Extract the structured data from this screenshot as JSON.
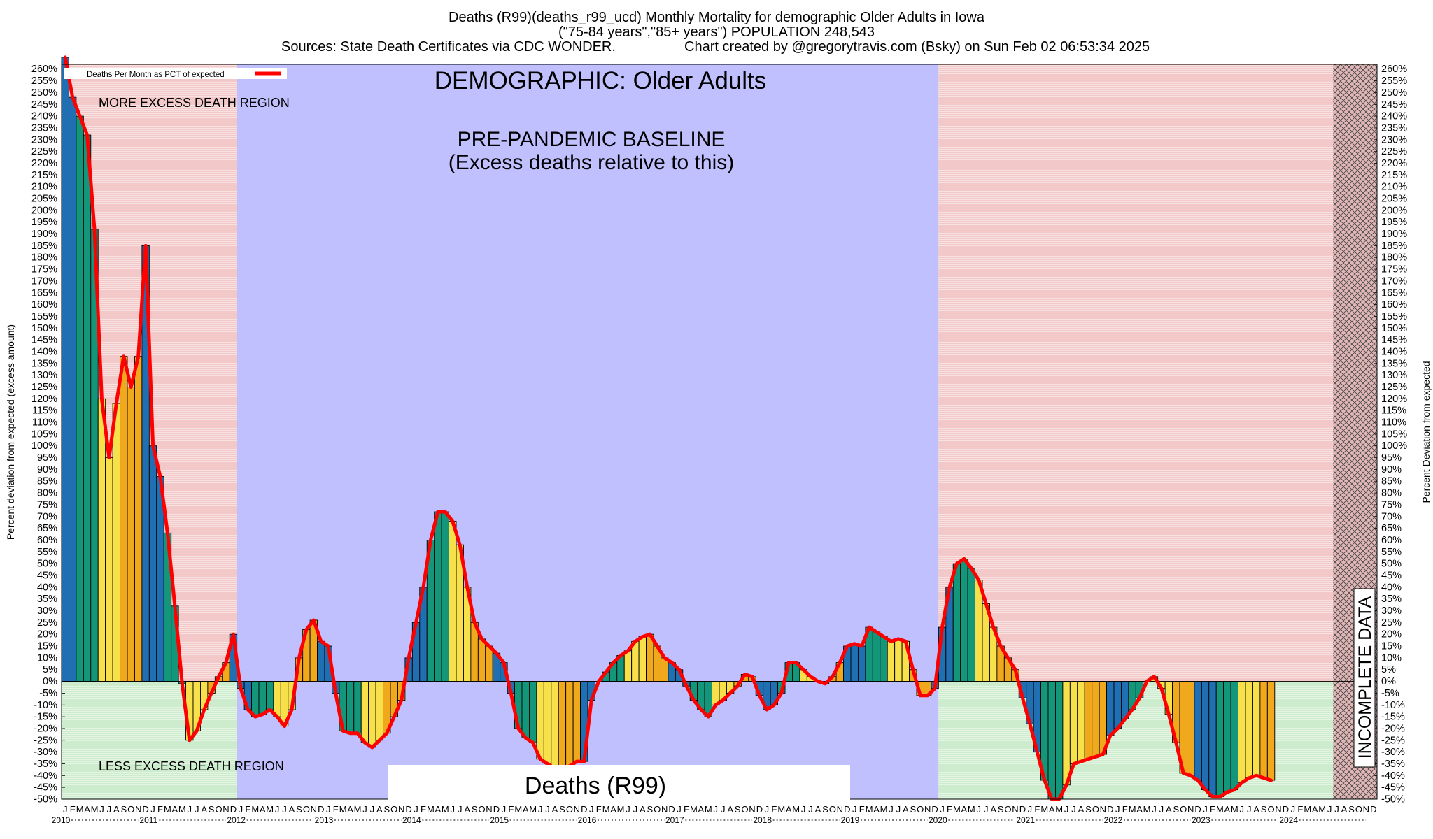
{
  "header": {
    "line1": "Deaths (R99)(deaths_r99_ucd) Monthly Mortality for demographic Older Adults in Iowa",
    "line2": "(\"75-84 years\",\"85+ years\") POPULATION 248,543",
    "line3_left": "Sources: State Death Certificates via CDC WONDER.",
    "line3_right": "Chart created by @gregorytravis.com (Bsky) on Sun Feb 02 06:53:34 2025"
  },
  "annotations": {
    "demographic": "DEMOGRAPHIC: Older Adults",
    "baseline_1": "PRE-PANDEMIC BASELINE",
    "baseline_2": "(Excess deaths relative to this)",
    "more_region": "MORE EXCESS DEATH REGION",
    "less_region": "LESS EXCESS DEATH REGION",
    "incomplete": "INCOMPLETE DATA",
    "bottom_box": "Deaths (R99)"
  },
  "legend": {
    "label": "Deaths Per Month as PCT of expected",
    "line_color": "#ff0000"
  },
  "colors": {
    "more_region": "#f2c8c8",
    "less_region": "#cdeccd",
    "baseline_region": "#c0c0ff",
    "incomplete_region": "#e2b7b7",
    "line": "#ff0000",
    "season_winter": "#1f6fb2",
    "season_spring": "#13967a",
    "season_summer": "#f7e04a",
    "season_fall": "#f0a81d"
  },
  "chart_data": {
    "type": "bar",
    "ylabel_left": "Percent deviation from expected (excess amount)",
    "ylabel_right": "Percent Deviation from expected",
    "ylim": [
      -50,
      262
    ],
    "y_tick_step": 5,
    "start": "2010-01",
    "month_letters": [
      "J",
      "F",
      "M",
      "A",
      "M",
      "J",
      "J",
      "A",
      "S",
      "O",
      "N",
      "D"
    ],
    "years": [
      "2010",
      "2011",
      "2012",
      "2013",
      "2014",
      "2015",
      "2016",
      "2017",
      "2018",
      "2019",
      "2020",
      "2021",
      "2022",
      "2023",
      "2024"
    ],
    "regions": [
      {
        "name": "more-excess",
        "from": "2010-01",
        "to": "2011-12"
      },
      {
        "name": "pre-pandemic-baseline",
        "from": "2012-01",
        "to": "2019-12"
      },
      {
        "name": "more-excess",
        "from": "2020-01",
        "to": "2024-07"
      },
      {
        "name": "incomplete-data",
        "from": "2024-07",
        "to": "2024-12"
      }
    ],
    "values": [
      265,
      248,
      240,
      232,
      192,
      120,
      95,
      118,
      138,
      125,
      138,
      185,
      100,
      87,
      63,
      32,
      -1,
      -25,
      -21,
      -12,
      -5,
      2,
      8,
      20,
      -3,
      -12,
      -15,
      -14,
      -12,
      -15,
      -19,
      -12,
      10,
      22,
      26,
      17,
      15,
      -5,
      -21,
      -22,
      -22,
      -26,
      -28,
      -25,
      -22,
      -15,
      -8,
      10,
      25,
      40,
      60,
      72,
      72,
      68,
      58,
      40,
      25,
      18,
      15,
      12,
      8,
      -5,
      -20,
      -24,
      -26,
      -33,
      -35,
      -37,
      -37,
      -36,
      -34,
      -34,
      -8,
      0,
      4,
      8,
      11,
      13,
      17,
      19,
      20,
      15,
      10,
      8,
      5,
      -2,
      -8,
      -12,
      -15,
      -10,
      -8,
      -5,
      -2,
      3,
      2,
      -6,
      -12,
      -10,
      -5,
      8,
      8,
      5,
      2,
      0,
      -1,
      2,
      8,
      15,
      16,
      15,
      23,
      21,
      19,
      17,
      18,
      17,
      5,
      -6,
      -6,
      -3,
      23,
      40,
      50,
      52,
      48,
      43,
      33,
      23,
      15,
      10,
      5,
      -7,
      -18,
      -30,
      -42,
      -50,
      -50,
      -44,
      -35,
      -34,
      -33,
      -32,
      -31,
      -23,
      -20,
      -16,
      -12,
      -7,
      0,
      2,
      -3,
      -14,
      -26,
      -39,
      -40,
      -42,
      -46,
      -49,
      -49,
      -47,
      -46,
      -43,
      -41,
      -40,
      -41,
      -42
    ]
  }
}
